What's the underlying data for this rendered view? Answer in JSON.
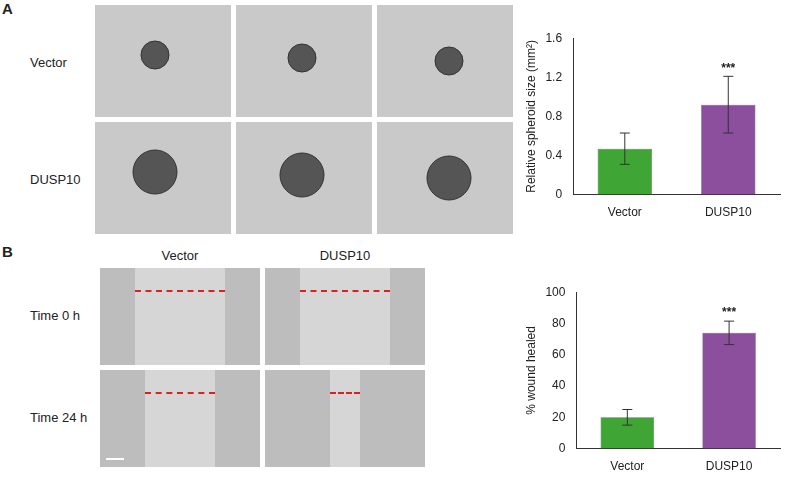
{
  "panels": [
    {
      "letter": "A",
      "row_labels": [
        "Vector",
        "DUSP10"
      ]
    },
    {
      "letter": "B",
      "column_labels": [
        "Vector",
        "DUSP10"
      ],
      "row_labels": [
        "Time 0 h",
        "Time 24 h"
      ]
    }
  ],
  "chart_data": [
    {
      "type": "bar",
      "categories": [
        "Vector",
        "DUSP10"
      ],
      "values": [
        0.47,
        0.92
      ],
      "errors": [
        0.16,
        0.29
      ],
      "colors": [
        "#3fa535",
        "#8c4f9e"
      ],
      "y_label": "Relative spheroid size (mm²)",
      "ylim": [
        0,
        1.6
      ],
      "yticks": [
        0,
        0.4,
        0.8,
        1.2,
        1.6
      ],
      "significance": [
        null,
        "***"
      ]
    },
    {
      "type": "bar",
      "categories": [
        "Vector",
        "DUSP10"
      ],
      "values": [
        20,
        74
      ],
      "errors": [
        5,
        7.5
      ],
      "colors": [
        "#3fa535",
        "#8c4f9e"
      ],
      "y_label": "% wound healed",
      "ylim": [
        0,
        100
      ],
      "yticks": [
        0,
        20,
        40,
        60,
        80,
        100
      ],
      "significance": [
        null,
        "***"
      ]
    }
  ]
}
